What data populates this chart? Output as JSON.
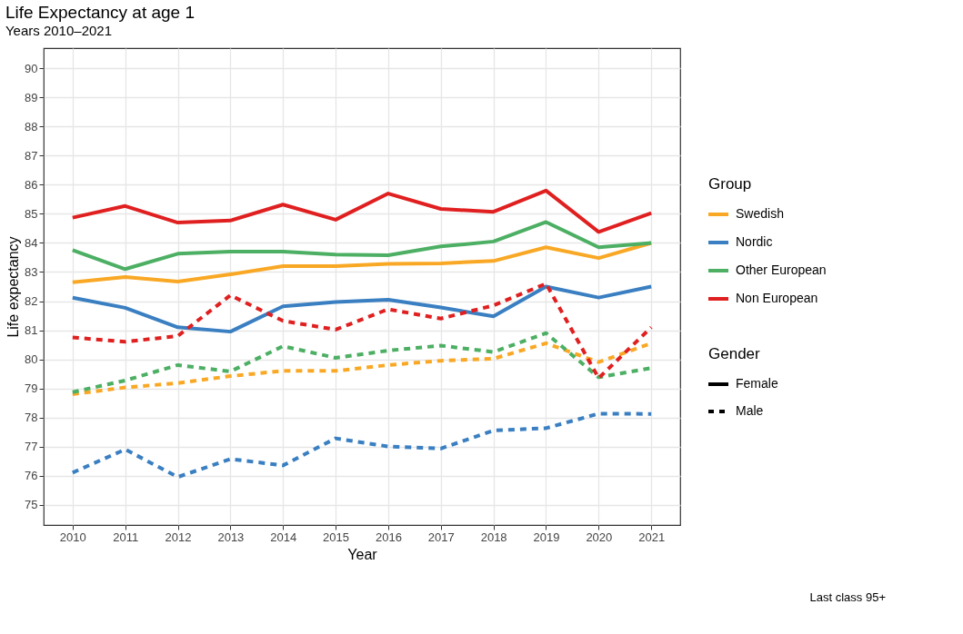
{
  "chart_data": {
    "type": "line",
    "title": "Life Expectancy at age 1",
    "subtitle": "Years 2010–2021",
    "xlabel": "Year",
    "ylabel": "Life expectancy",
    "legend_title": [
      "Group",
      "Gender"
    ],
    "legend": "right",
    "grid": true,
    "marker": "none",
    "x": [
      2010,
      2011,
      2012,
      2013,
      2014,
      2015,
      2016,
      2017,
      2018,
      2019,
      2020,
      2021
    ],
    "xlim": [
      2009.45,
      2021.55
    ],
    "xticks": [
      2010,
      2011,
      2012,
      2013,
      2014,
      2015,
      2016,
      2017,
      2018,
      2019,
      2020,
      2021
    ],
    "ylim": [
      74.3,
      90.7
    ],
    "yticks": [
      75,
      76,
      77,
      78,
      79,
      80,
      81,
      82,
      83,
      84,
      85,
      86,
      87,
      88,
      89,
      90
    ],
    "series": [
      {
        "name": "Swedish",
        "line_style": "solid",
        "color": "#f9a825",
        "values": [
          82.65,
          82.83,
          82.67,
          82.92,
          83.2,
          83.2,
          83.28,
          83.3,
          83.38,
          83.85,
          83.48,
          84.0
        ]
      },
      {
        "name": "Nordic",
        "line_style": "solid",
        "color": "#3a7fc1",
        "values": [
          82.12,
          81.77,
          81.1,
          80.95,
          81.82,
          81.97,
          82.05,
          81.78,
          81.48,
          82.5,
          82.12,
          82.5
        ]
      },
      {
        "name": "Other European",
        "line_style": "solid",
        "color": "#4caf63",
        "values": [
          83.75,
          83.1,
          83.63,
          83.7,
          83.7,
          83.6,
          83.58,
          83.88,
          84.05,
          84.72,
          83.85,
          84.0
        ]
      },
      {
        "name": "Non European",
        "line_style": "solid",
        "color": "#e02020",
        "values": [
          84.87,
          85.27,
          84.7,
          84.77,
          85.32,
          84.8,
          85.7,
          85.17,
          85.07,
          85.8,
          84.38,
          85.03
        ]
      },
      {
        "line_style": "dashed",
        "color": "#f9a825",
        "values": [
          78.8,
          79.03,
          79.18,
          79.42,
          79.6,
          79.6,
          79.8,
          79.95,
          80.02,
          80.55,
          79.9,
          80.55
        ]
      },
      {
        "line_style": "dashed",
        "color": "#3a7fc1",
        "values": [
          76.1,
          76.9,
          75.95,
          76.57,
          76.35,
          77.28,
          77.0,
          76.93,
          77.55,
          77.63,
          78.13,
          78.12
        ]
      },
      {
        "line_style": "dashed",
        "color": "#4caf63",
        "values": [
          78.87,
          79.27,
          79.8,
          79.58,
          80.45,
          80.05,
          80.3,
          80.47,
          80.25,
          80.9,
          79.38,
          79.7
        ]
      },
      {
        "line_style": "dashed",
        "color": "#e02020",
        "values": [
          80.75,
          80.6,
          80.8,
          82.2,
          81.32,
          81.02,
          81.72,
          81.4,
          81.85,
          82.6,
          79.35,
          81.1
        ]
      }
    ],
    "annotations": [
      "Female",
      "Male",
      "Last class 95+"
    ]
  }
}
